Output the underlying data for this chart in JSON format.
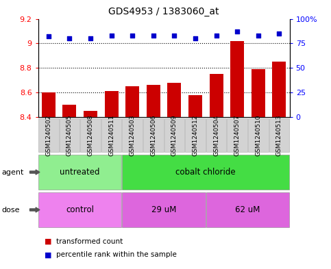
{
  "title": "GDS4953 / 1383060_at",
  "samples": [
    "GSM1240502",
    "GSM1240505",
    "GSM1240508",
    "GSM1240511",
    "GSM1240503",
    "GSM1240506",
    "GSM1240509",
    "GSM1240512",
    "GSM1240504",
    "GSM1240507",
    "GSM1240510",
    "GSM1240513"
  ],
  "bar_values": [
    8.6,
    8.5,
    8.45,
    8.61,
    8.65,
    8.66,
    8.68,
    8.58,
    8.75,
    9.02,
    8.79,
    8.85
  ],
  "percentile_values": [
    82,
    80,
    80,
    83,
    83,
    83,
    83,
    80,
    83,
    87,
    83,
    85
  ],
  "bar_color": "#cc0000",
  "dot_color": "#0000cc",
  "ylim_left": [
    8.4,
    9.2
  ],
  "ylim_right": [
    0,
    100
  ],
  "yticks_left": [
    8.4,
    8.6,
    8.8,
    9.0,
    9.2
  ],
  "ytick_labels_left": [
    "8.4",
    "8.6",
    "8.8",
    "9",
    "9.2"
  ],
  "yticks_right": [
    0,
    25,
    50,
    75,
    100
  ],
  "ytick_labels_right": [
    "0",
    "25",
    "50",
    "75",
    "100%"
  ],
  "hlines": [
    8.6,
    8.8,
    9.0
  ],
  "agent_groups": [
    {
      "label": "untreated",
      "start": 0,
      "end": 4,
      "color": "#90ee90"
    },
    {
      "label": "cobalt chloride",
      "start": 4,
      "end": 12,
      "color": "#44dd44"
    }
  ],
  "dose_groups": [
    {
      "label": "control",
      "start": 0,
      "end": 4,
      "color": "#ee82ee"
    },
    {
      "label": "29 uM",
      "start": 4,
      "end": 8,
      "color": "#dd66dd"
    },
    {
      "label": "62 uM",
      "start": 8,
      "end": 12,
      "color": "#dd66dd"
    }
  ],
  "legend_bar_label": "transformed count",
  "legend_dot_label": "percentile rank within the sample",
  "bar_bottom": 8.4,
  "xlabel_agent": "agent",
  "xlabel_dose": "dose",
  "title_fontsize": 10,
  "tick_fontsize": 8,
  "label_fontsize": 8,
  "sample_fontsize": 6.5,
  "group_label_fontsize": 8.5
}
